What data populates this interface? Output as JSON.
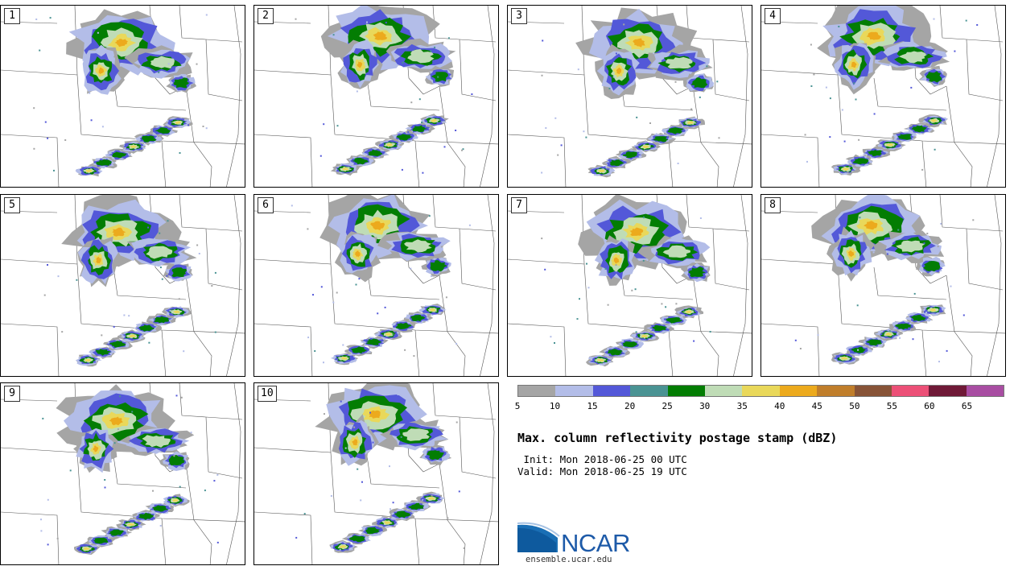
{
  "panels": [
    {
      "label": "1"
    },
    {
      "label": "2"
    },
    {
      "label": "3"
    },
    {
      "label": "4"
    },
    {
      "label": "5"
    },
    {
      "label": "6"
    },
    {
      "label": "7"
    },
    {
      "label": "8"
    },
    {
      "label": "9"
    },
    {
      "label": "10"
    }
  ],
  "colorbar": {
    "colors": [
      "#a5a5a5",
      "#b3bde8",
      "#5358d8",
      "#4a9393",
      "#037d03",
      "#bfdcb6",
      "#e9d85a",
      "#ecaa1d",
      "#c07e2b",
      "#875337",
      "#ec5077",
      "#6f1937",
      "#a84da2"
    ],
    "ticks": [
      "5",
      "10",
      "15",
      "20",
      "25",
      "30",
      "35",
      "40",
      "45",
      "50",
      "55",
      "60",
      "65"
    ]
  },
  "title": "Max. column reflectivity postage stamp (dBZ)",
  "init": " Init: Mon 2018-06-25 00 UTC",
  "valid": "Valid: Mon 2018-06-25 19 UTC",
  "logo": {
    "name": "NCAR",
    "url": "ensemble.ucar.edu"
  }
}
